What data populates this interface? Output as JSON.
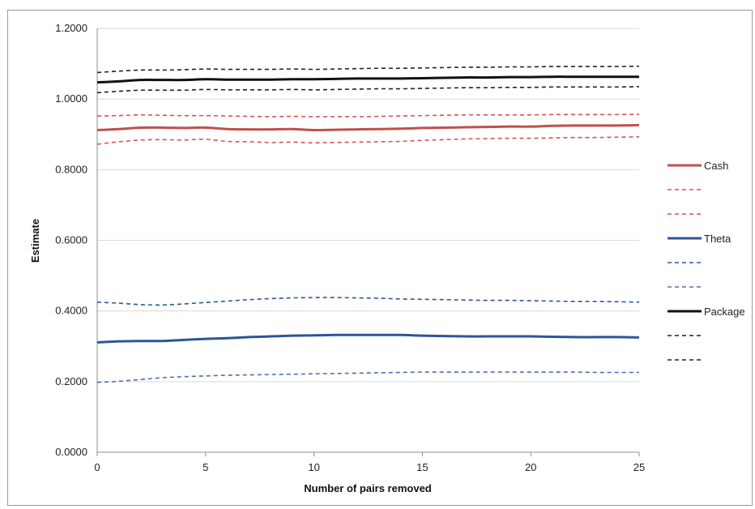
{
  "chart_data": {
    "type": "line",
    "title": "",
    "xlabel": "Number of pairs removed",
    "ylabel": "Estimate",
    "xlim": [
      0,
      25
    ],
    "ylim": [
      0,
      1.2
    ],
    "x_ticks": [
      0,
      5,
      10,
      15,
      20,
      25
    ],
    "x_tick_labels": [
      "0",
      "5",
      "10",
      "15",
      "20",
      "25"
    ],
    "y_ticks": [
      0,
      0.2,
      0.4,
      0.6,
      0.8,
      1.0,
      1.2
    ],
    "y_tick_labels": [
      "0.0000",
      "0.2000",
      "0.4000",
      "0.6000",
      "0.8000",
      "1.0000",
      "1.2000"
    ],
    "grid": "horizontal",
    "legend_position": "right",
    "x": [
      0,
      1,
      2,
      3,
      4,
      5,
      6,
      7,
      8,
      9,
      10,
      11,
      12,
      13,
      14,
      15,
      16,
      17,
      18,
      19,
      20,
      21,
      22,
      23,
      24,
      25
    ],
    "series": [
      {
        "name": "Cash",
        "color": "#c0504d",
        "style": "solid",
        "width": 3,
        "values": [
          0.912,
          0.915,
          0.919,
          0.919,
          0.918,
          0.919,
          0.915,
          0.914,
          0.914,
          0.915,
          0.912,
          0.913,
          0.914,
          0.915,
          0.916,
          0.918,
          0.919,
          0.92,
          0.921,
          0.922,
          0.922,
          0.924,
          0.925,
          0.925,
          0.925,
          0.926
        ]
      },
      {
        "name": "",
        "color": "#d9534f",
        "style": "dashed",
        "width": 1.6,
        "values": [
          0.952,
          0.953,
          0.955,
          0.954,
          0.953,
          0.953,
          0.952,
          0.951,
          0.95,
          0.951,
          0.95,
          0.95,
          0.95,
          0.951,
          0.952,
          0.953,
          0.954,
          0.955,
          0.955,
          0.955,
          0.955,
          0.956,
          0.956,
          0.956,
          0.956,
          0.957
        ]
      },
      {
        "name": "",
        "color": "#d9534f",
        "style": "dashed",
        "width": 1.6,
        "values": [
          0.872,
          0.879,
          0.884,
          0.885,
          0.884,
          0.886,
          0.88,
          0.879,
          0.877,
          0.878,
          0.876,
          0.877,
          0.878,
          0.879,
          0.88,
          0.883,
          0.885,
          0.887,
          0.888,
          0.889,
          0.889,
          0.89,
          0.891,
          0.891,
          0.892,
          0.893
        ]
      },
      {
        "name": "Theta",
        "color": "#2e5597",
        "style": "solid",
        "width": 3,
        "values": [
          0.311,
          0.314,
          0.315,
          0.315,
          0.318,
          0.321,
          0.323,
          0.326,
          0.328,
          0.33,
          0.331,
          0.332,
          0.332,
          0.332,
          0.332,
          0.33,
          0.329,
          0.328,
          0.328,
          0.328,
          0.328,
          0.327,
          0.326,
          0.326,
          0.326,
          0.325
        ]
      },
      {
        "name": "",
        "color": "#2e5597",
        "style": "dashed",
        "width": 1.6,
        "values": [
          0.425,
          0.422,
          0.418,
          0.417,
          0.42,
          0.424,
          0.428,
          0.432,
          0.435,
          0.437,
          0.438,
          0.438,
          0.437,
          0.436,
          0.434,
          0.433,
          0.432,
          0.431,
          0.43,
          0.43,
          0.429,
          0.428,
          0.427,
          0.427,
          0.426,
          0.425
        ]
      },
      {
        "name": "",
        "color": "#4f6fae",
        "style": "dashed",
        "width": 1.6,
        "values": [
          0.198,
          0.201,
          0.206,
          0.211,
          0.214,
          0.216,
          0.218,
          0.219,
          0.22,
          0.221,
          0.222,
          0.223,
          0.224,
          0.225,
          0.226,
          0.227,
          0.227,
          0.227,
          0.227,
          0.227,
          0.227,
          0.227,
          0.227,
          0.226,
          0.226,
          0.226
        ]
      },
      {
        "name": "Package",
        "color": "#111111",
        "style": "solid",
        "width": 3,
        "values": [
          1.047,
          1.05,
          1.054,
          1.054,
          1.054,
          1.056,
          1.055,
          1.055,
          1.055,
          1.056,
          1.056,
          1.057,
          1.058,
          1.058,
          1.058,
          1.059,
          1.06,
          1.061,
          1.061,
          1.062,
          1.062,
          1.063,
          1.063,
          1.063,
          1.063,
          1.063
        ]
      },
      {
        "name": "",
        "color": "#222222",
        "style": "dashed",
        "width": 1.6,
        "values": [
          1.075,
          1.079,
          1.082,
          1.082,
          1.083,
          1.085,
          1.084,
          1.084,
          1.084,
          1.085,
          1.084,
          1.085,
          1.086,
          1.087,
          1.087,
          1.088,
          1.089,
          1.09,
          1.09,
          1.091,
          1.091,
          1.092,
          1.092,
          1.092,
          1.092,
          1.093
        ]
      },
      {
        "name": "",
        "color": "#222222",
        "style": "dashed",
        "width": 1.6,
        "values": [
          1.018,
          1.022,
          1.025,
          1.025,
          1.025,
          1.027,
          1.026,
          1.026,
          1.026,
          1.027,
          1.026,
          1.027,
          1.028,
          1.029,
          1.029,
          1.03,
          1.031,
          1.032,
          1.032,
          1.033,
          1.033,
          1.034,
          1.034,
          1.034,
          1.034,
          1.035
        ]
      }
    ]
  }
}
